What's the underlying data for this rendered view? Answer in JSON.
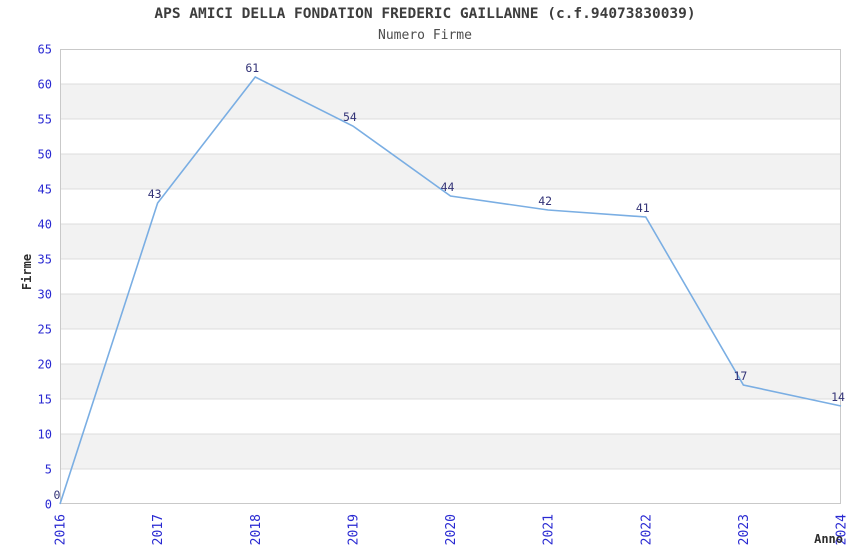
{
  "chart_data": {
    "type": "line",
    "title": "APS AMICI DELLA FONDATION FREDERIC GAILLANNE (c.f.94073830039)",
    "subtitle": "Numero Firme",
    "xlabel": "Anno",
    "ylabel": "Firme",
    "categories": [
      "2016",
      "2017",
      "2018",
      "2019",
      "2020",
      "2021",
      "2022",
      "2023",
      "2024"
    ],
    "values": [
      0,
      43,
      61,
      54,
      44,
      42,
      41,
      17,
      14
    ],
    "ylim": [
      0,
      65
    ],
    "ytick_step": 5,
    "yticks": [
      0,
      5,
      10,
      15,
      20,
      25,
      30,
      35,
      40,
      45,
      50,
      55,
      60,
      65
    ],
    "grid": "horizontal",
    "background_bands": "alternating-5-unit",
    "legend": "none",
    "data_labels_shown": true,
    "x_tick_rotation_deg": 90,
    "colors": {
      "line": "#7aaee3",
      "tick_labels": "#2929d2",
      "point_labels": "#333377",
      "band_light": "#ffffff",
      "band_shaded": "#f2f2f2",
      "gridline": "#dcdcdc",
      "plot_border": "#c9c9c9",
      "title_text": "#3d3d3d",
      "subtitle_text": "#4d4d4d",
      "axis_label_text": "#2e2e2e",
      "background": "#ffffff"
    }
  }
}
